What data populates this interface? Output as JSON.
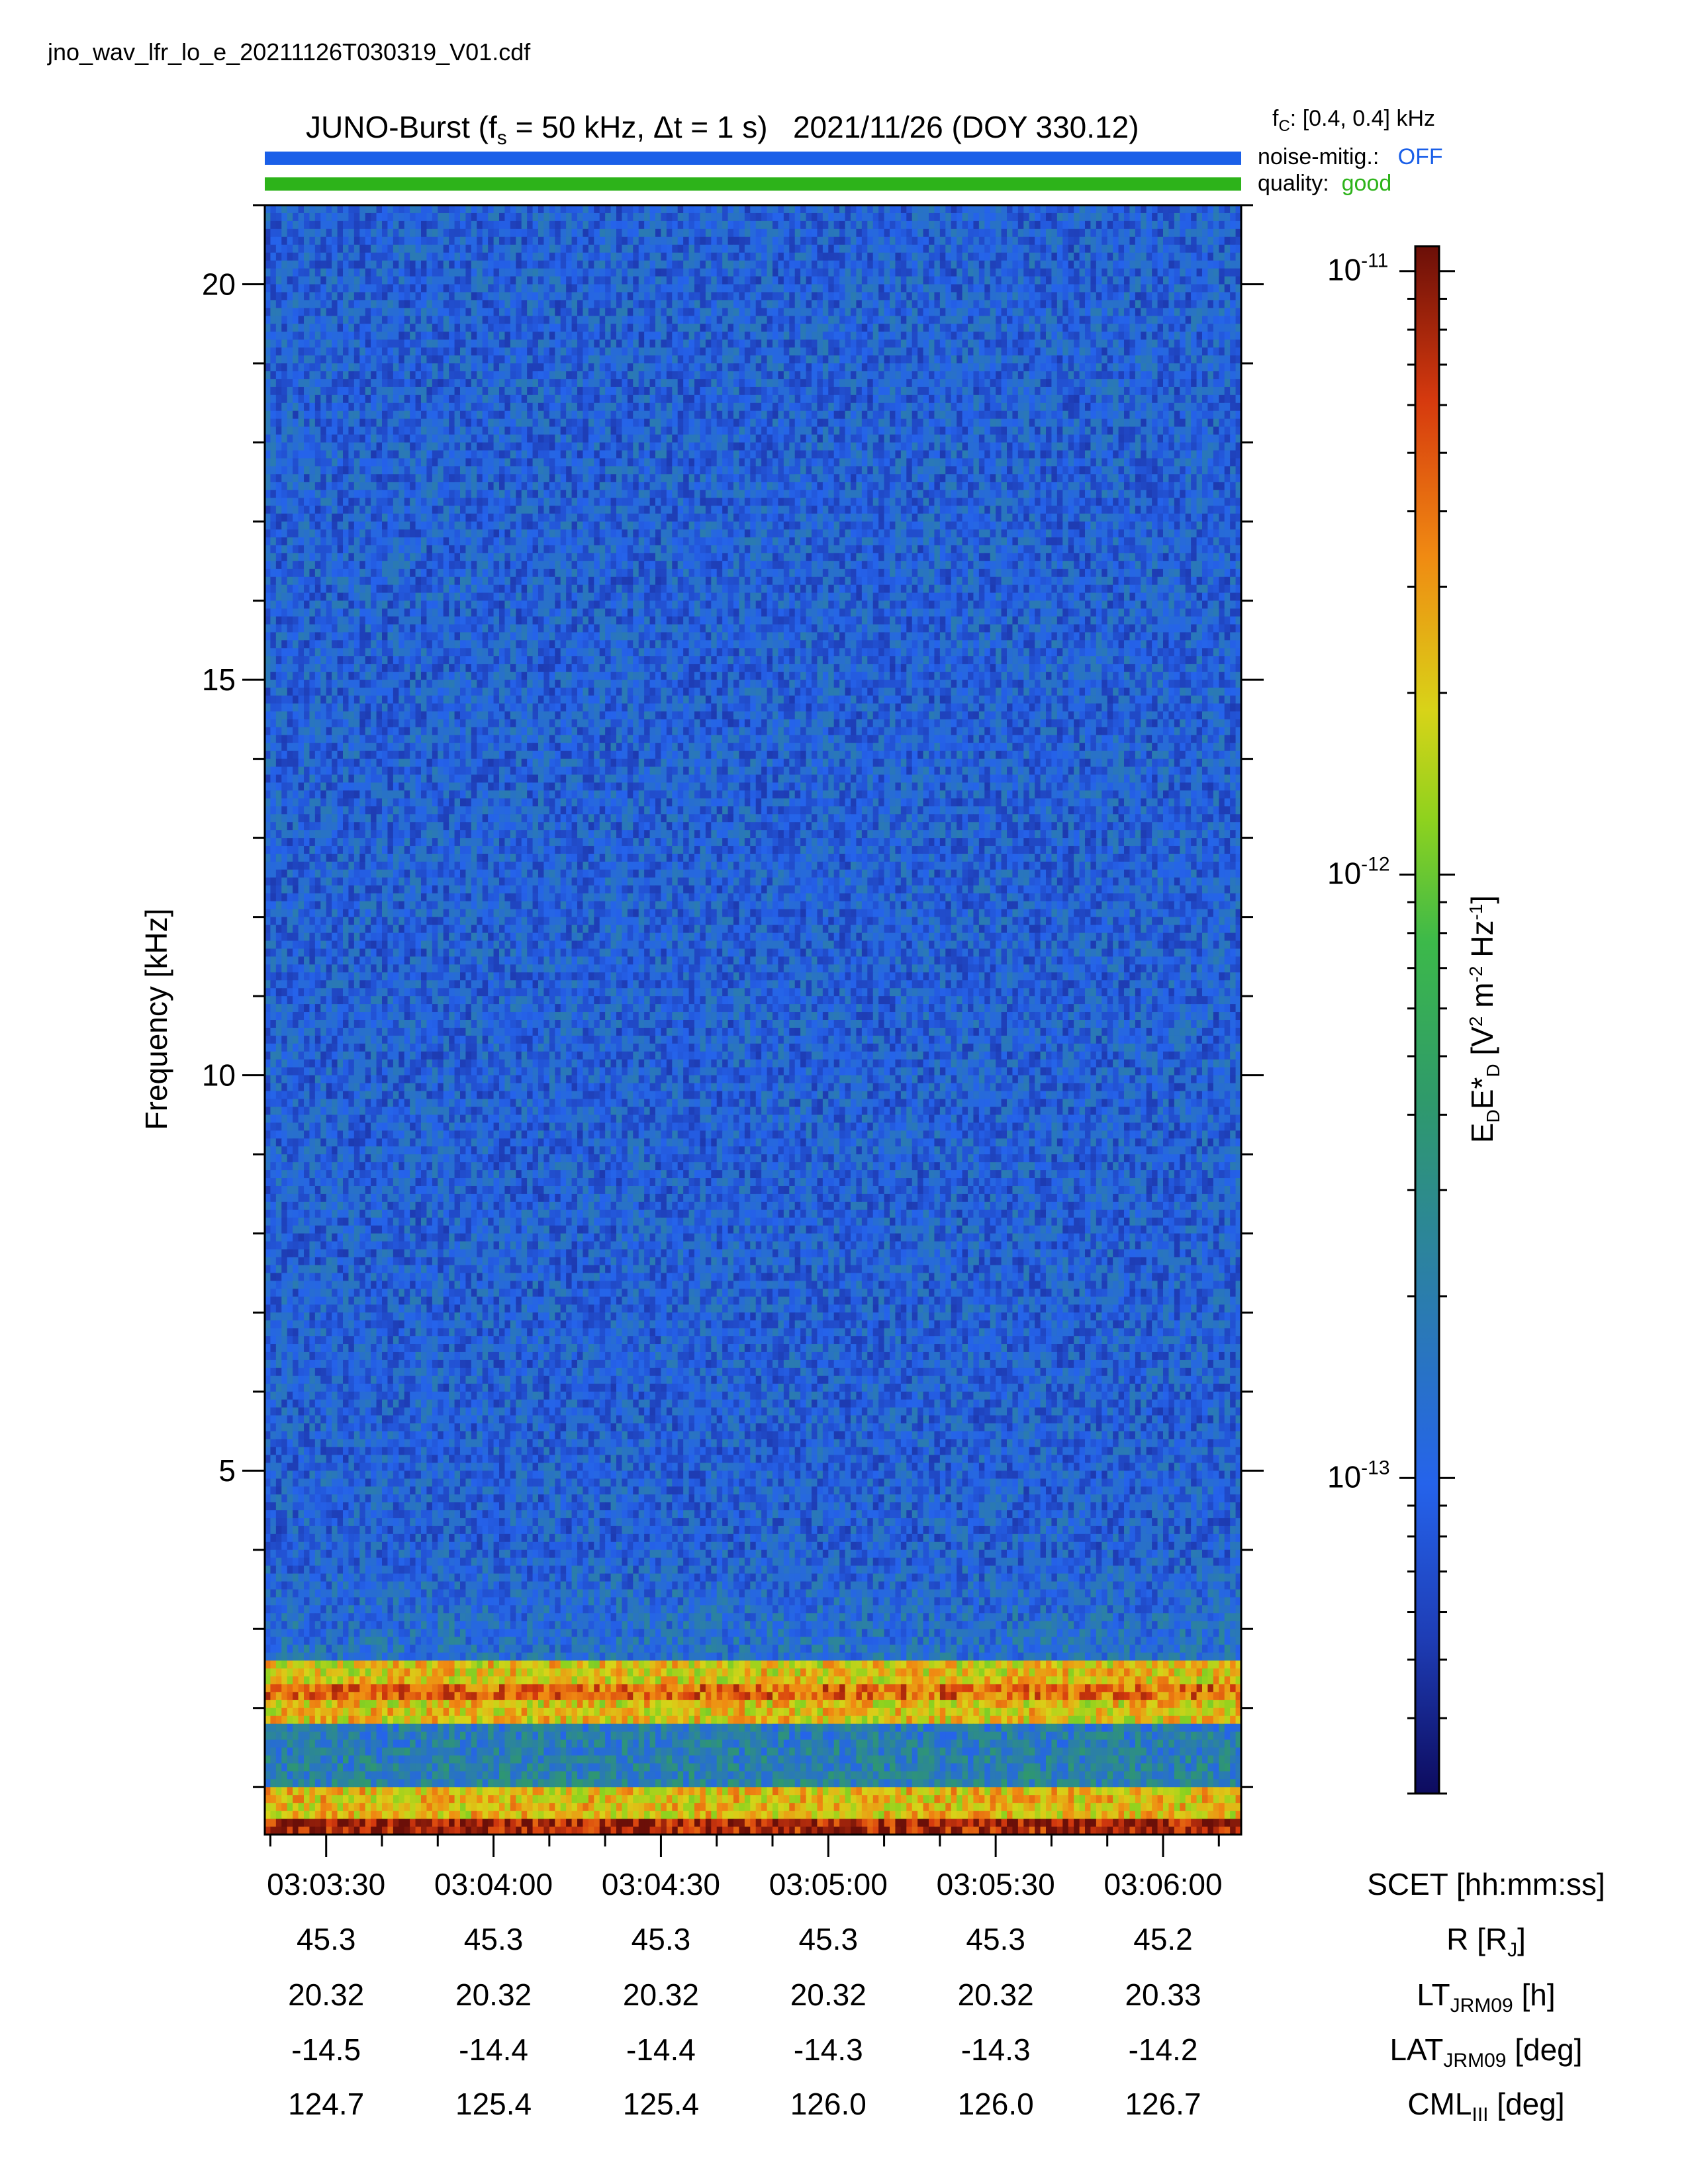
{
  "filename": "jno_wav_lfr_lo_e_20211126T030319_V01.cdf",
  "header": {
    "instrument": "JUNO-Burst",
    "fs_value": "50 kHz",
    "dt_value": "1 s",
    "date": "2021/11/26 (DOY 330.12)",
    "fc_label": "f",
    "fc_sub": "C",
    "fc_value": ": [0.4, 0.4] kHz",
    "noise_label": "noise-mitig.:",
    "noise_value": "OFF",
    "quality_label": "quality:",
    "quality_value": "good"
  },
  "colors": {
    "noise_bar": "#1a5fe8",
    "quality_bar": "#2db31a",
    "noise_text": "#1a5fe8",
    "quality_text": "#2db31a"
  },
  "chart_data": {
    "type": "heatmap",
    "ylabel": "Frequency [kHz]",
    "ylim": [
      0.4,
      21.0
    ],
    "yticks": [
      5,
      10,
      15,
      20
    ],
    "ytick_labels": [
      "5",
      "10",
      "15",
      "20"
    ],
    "xticks": [
      "03:03:30",
      "03:04:00",
      "03:04:30",
      "03:05:00",
      "03:05:30",
      "03:06:00"
    ],
    "xlim": [
      "03:03:19",
      "03:06:14"
    ],
    "colorbar": {
      "label": "E_D E*_D [V^2 m^-2 Hz^-1]",
      "scale": "log",
      "range": [
        3e-14,
        1.1e-11
      ],
      "tick_labels": [
        "10",
        "10",
        "10"
      ],
      "tick_exponents": [
        "-11",
        "-12",
        "-13"
      ],
      "tick_values": [
        1e-11,
        1e-12,
        1e-13
      ]
    },
    "features": [
      {
        "description": "strong emission band",
        "freq_khz": [
          0.4,
          0.6
        ],
        "level": 8e-12
      },
      {
        "description": "elevated band",
        "freq_khz": [
          1.8,
          2.6
        ],
        "level": 3e-12
      },
      {
        "description": "background",
        "freq_khz": [
          4.0,
          21.0
        ],
        "level": 1e-13
      }
    ]
  },
  "ephemeris": {
    "rows": [
      {
        "label": "SCET [hh:mm:ss]",
        "values": [
          "03:03:30",
          "03:04:00",
          "03:04:30",
          "03:05:00",
          "03:05:30",
          "03:06:00"
        ]
      },
      {
        "label": "R [R_J]",
        "values": [
          "45.3",
          "45.3",
          "45.3",
          "45.3",
          "45.3",
          "45.2"
        ]
      },
      {
        "label": "LT_JRM09 [h]",
        "values": [
          "20.32",
          "20.32",
          "20.32",
          "20.32",
          "20.32",
          "20.33"
        ]
      },
      {
        "label": "LAT_JRM09 [deg]",
        "values": [
          "-14.5",
          "-14.4",
          "-14.4",
          "-14.3",
          "-14.3",
          "-14.2"
        ]
      },
      {
        "label": "CML_III [deg]",
        "values": [
          "124.7",
          "125.4",
          "125.4",
          "126.0",
          "126.0",
          "126.7"
        ]
      }
    ]
  }
}
